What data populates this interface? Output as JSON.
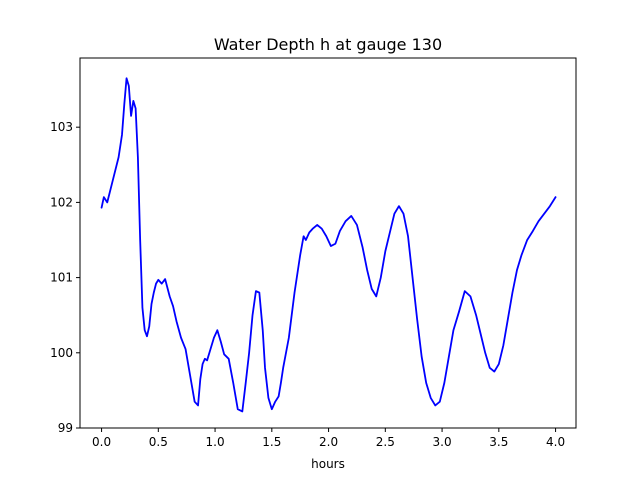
{
  "chart_data": {
    "type": "line",
    "title": "Water Depth h at gauge 130",
    "xlabel": "hours",
    "ylabel": "",
    "xlim": [
      -0.19,
      4.18
    ],
    "ylim": [
      99.0,
      103.92
    ],
    "xticks": [
      0.0,
      0.5,
      1.0,
      1.5,
      2.0,
      2.5,
      3.0,
      3.5,
      4.0
    ],
    "xtick_labels": [
      "0.0",
      "0.5",
      "1.0",
      "1.5",
      "2.0",
      "2.5",
      "3.0",
      "3.5",
      "4.0"
    ],
    "yticks": [
      99,
      100,
      101,
      102,
      103
    ],
    "ytick_labels": [
      "99",
      "100",
      "101",
      "102",
      "103"
    ],
    "grid": false,
    "color": "#0000ff",
    "series": [
      {
        "x": [
          0.0,
          0.02,
          0.05,
          0.1,
          0.15,
          0.18,
          0.2,
          0.22,
          0.24,
          0.26,
          0.28,
          0.3,
          0.32,
          0.34,
          0.36,
          0.38,
          0.4,
          0.42,
          0.44,
          0.46,
          0.48,
          0.5,
          0.53,
          0.56,
          0.6,
          0.63,
          0.66,
          0.7,
          0.74,
          0.78,
          0.82,
          0.85,
          0.87,
          0.89,
          0.91,
          0.93,
          0.96,
          0.99,
          1.02,
          1.05,
          1.08,
          1.12,
          1.16,
          1.2,
          1.24,
          1.27,
          1.3,
          1.33,
          1.36,
          1.39,
          1.42,
          1.44,
          1.47,
          1.5,
          1.53,
          1.56,
          1.58,
          1.6,
          1.65,
          1.7,
          1.75,
          1.78,
          1.8,
          1.83,
          1.86,
          1.9,
          1.94,
          1.98,
          2.02,
          2.06,
          2.1,
          2.15,
          2.2,
          2.25,
          2.3,
          2.34,
          2.38,
          2.42,
          2.46,
          2.5,
          2.54,
          2.58,
          2.62,
          2.66,
          2.7,
          2.74,
          2.78,
          2.82,
          2.86,
          2.9,
          2.94,
          2.98,
          3.02,
          3.06,
          3.1,
          3.15,
          3.2,
          3.25,
          3.3,
          3.34,
          3.38,
          3.42,
          3.46,
          3.5,
          3.54,
          3.58,
          3.62,
          3.66,
          3.7,
          3.75,
          3.8,
          3.85,
          3.9,
          3.95,
          4.0
        ],
        "y": [
          101.93,
          102.07,
          102.0,
          102.3,
          102.6,
          102.9,
          103.3,
          103.65,
          103.55,
          103.15,
          103.35,
          103.25,
          102.6,
          101.5,
          100.6,
          100.3,
          100.22,
          100.35,
          100.65,
          100.8,
          100.92,
          100.97,
          100.92,
          100.98,
          100.75,
          100.62,
          100.42,
          100.2,
          100.05,
          99.7,
          99.35,
          99.3,
          99.65,
          99.85,
          99.92,
          99.9,
          100.05,
          100.2,
          100.3,
          100.15,
          99.98,
          99.92,
          99.6,
          99.25,
          99.22,
          99.6,
          100.0,
          100.5,
          100.82,
          100.8,
          100.3,
          99.8,
          99.4,
          99.25,
          99.35,
          99.42,
          99.6,
          99.8,
          100.2,
          100.8,
          101.3,
          101.55,
          101.5,
          101.6,
          101.65,
          101.7,
          101.65,
          101.55,
          101.42,
          101.45,
          101.62,
          101.75,
          101.82,
          101.7,
          101.4,
          101.1,
          100.85,
          100.75,
          101.0,
          101.35,
          101.6,
          101.85,
          101.95,
          101.85,
          101.55,
          101.0,
          100.45,
          99.95,
          99.6,
          99.4,
          99.3,
          99.35,
          99.6,
          99.95,
          100.3,
          100.55,
          100.82,
          100.75,
          100.5,
          100.25,
          100.0,
          99.8,
          99.75,
          99.85,
          100.1,
          100.45,
          100.8,
          101.1,
          101.3,
          101.5,
          101.62,
          101.75,
          101.85,
          101.95,
          102.07
        ]
      }
    ]
  }
}
